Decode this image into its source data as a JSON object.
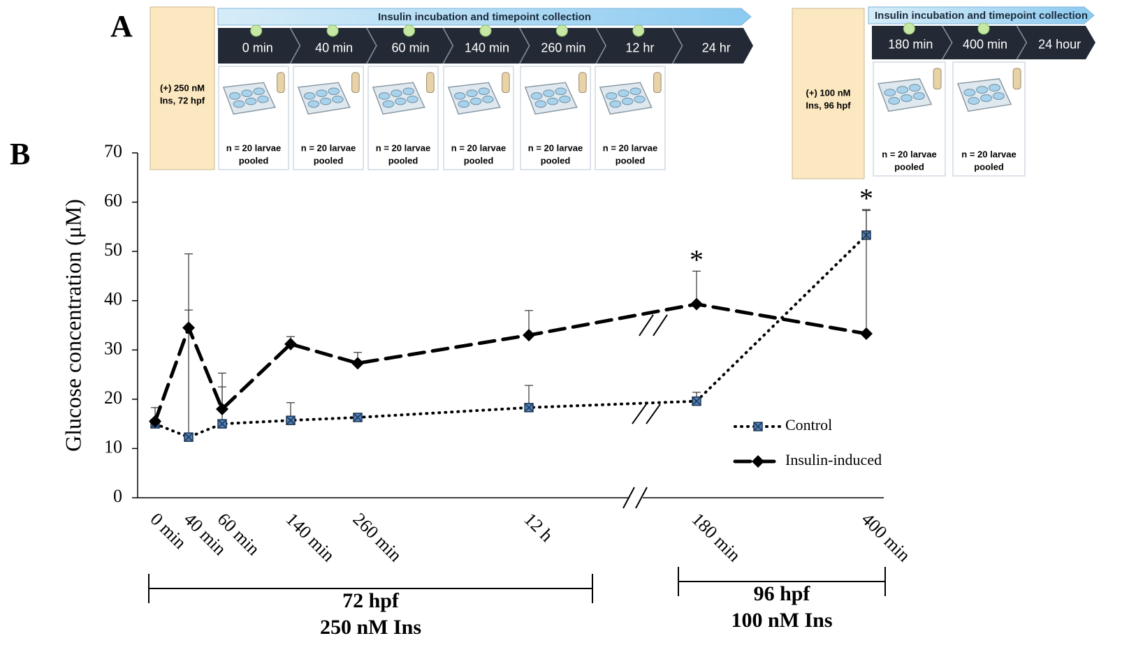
{
  "panel_a": {
    "label": "A",
    "left": {
      "condition": [
        "(+) 250 nM",
        "Ins, 72 hpf"
      ],
      "header": "Insulin incubation and timepoint collection",
      "steps": [
        "0 min",
        "40 min",
        "60 min",
        "140 min",
        "260 min",
        "12 hr",
        "24 hr"
      ],
      "cards": [
        [
          "n = 20 larvae",
          "pooled"
        ],
        [
          "n = 20 larvae",
          "pooled"
        ],
        [
          "n = 20 larvae",
          "pooled"
        ],
        [
          "n = 20 larvae",
          "pooled"
        ],
        [
          "n = 20 larvae",
          "pooled"
        ],
        [
          "n = 20 larvae",
          "pooled"
        ]
      ]
    },
    "right": {
      "condition": [
        "(+) 100 nM",
        "Ins, 96 hpf"
      ],
      "header": "Insulin incubation and timepoint collection",
      "steps": [
        "180 min",
        "400 min",
        "24 hour"
      ],
      "cards": [
        [
          "n = 20 larvae",
          "pooled"
        ],
        [
          "n = 20 larvae",
          "pooled"
        ]
      ]
    }
  },
  "chart_data": {
    "type": "line",
    "panel_label": "B",
    "y_label": "Glucose concentration (μM)",
    "categories": [
      "0 min",
      "40 min",
      "60 min",
      "140 min",
      "260 min",
      "12 h",
      "180 min",
      "400 min"
    ],
    "ylim": [
      0,
      70
    ],
    "yticks": [
      0,
      10,
      20,
      30,
      40,
      50,
      60,
      70
    ],
    "series": [
      {
        "name": "Control",
        "color": "#4f81bd",
        "values": [
          15,
          12.3,
          15,
          15.7,
          16.3,
          18.3,
          19.6,
          53.3
        ],
        "errors": [
          3.3,
          25.8,
          7.5,
          3.6,
          0,
          4.5,
          1.8,
          5
        ]
      },
      {
        "name": "Insulin-induced",
        "color": "#000000",
        "values": [
          15.5,
          34.5,
          18,
          31.2,
          27.3,
          33,
          39.3,
          33.3
        ],
        "errors": [
          0,
          15,
          7.3,
          1.5,
          2.2,
          5,
          6.7,
          25.2
        ]
      }
    ],
    "annotations": [
      {
        "text": "*",
        "category": "180 min"
      },
      {
        "text": "*",
        "category": "400 min"
      }
    ],
    "groups": [
      {
        "lines": [
          "72 hpf",
          "250 nM Ins"
        ]
      },
      {
        "lines": [
          "96 hpf",
          "100 nM Ins"
        ]
      }
    ]
  }
}
